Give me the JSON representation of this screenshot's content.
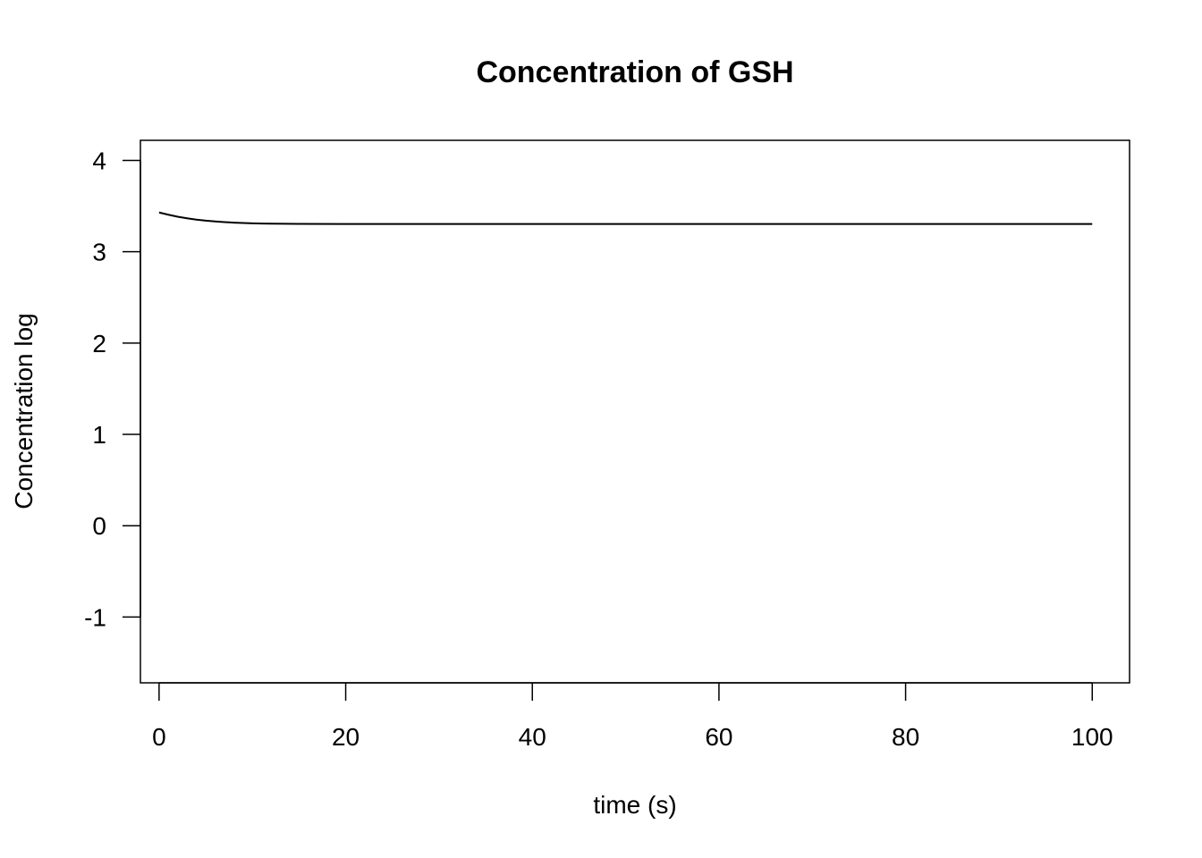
{
  "chart_data": {
    "type": "line",
    "title": "Concentration of GSH",
    "xlabel": "time (s)",
    "ylabel": "Concentration log",
    "xlim": [
      -2,
      104
    ],
    "ylim": [
      -1.72,
      4.22
    ],
    "x_ticks": [
      0,
      20,
      40,
      60,
      80,
      100
    ],
    "x_tick_labels": [
      "0",
      "20",
      "40",
      "60",
      "80",
      "100"
    ],
    "y_ticks": [
      -1,
      0,
      1,
      2,
      3,
      4
    ],
    "y_tick_labels": [
      "-1",
      "0",
      "1",
      "2",
      "3",
      "4"
    ],
    "grid": false,
    "legend": "none",
    "line_color": "#000000",
    "series": [
      {
        "x": [
          0,
          1,
          2,
          3,
          4,
          5,
          6,
          7,
          8,
          9,
          10,
          11,
          12,
          15,
          20,
          30,
          40,
          50,
          60,
          70,
          80,
          90,
          100
        ],
        "y": [
          3.43,
          3.405,
          3.383,
          3.366,
          3.352,
          3.341,
          3.332,
          3.325,
          3.319,
          3.315,
          3.311,
          3.309,
          3.307,
          3.305,
          3.304,
          3.304,
          3.304,
          3.304,
          3.304,
          3.304,
          3.304,
          3.304,
          3.304
        ]
      }
    ]
  }
}
